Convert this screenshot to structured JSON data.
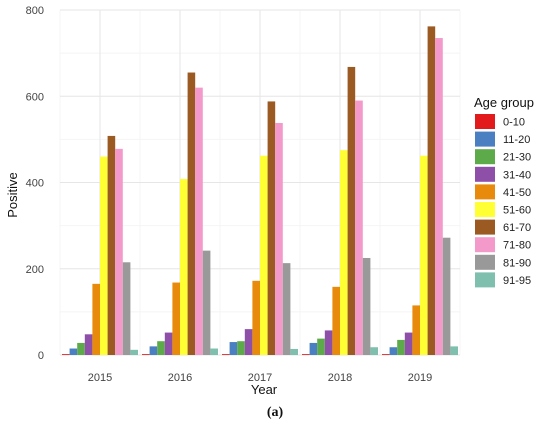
{
  "caption": "(a)",
  "chart_data": {
    "type": "bar",
    "title": "",
    "xlabel": "Year",
    "ylabel": "Positive",
    "categories": [
      "2015",
      "2016",
      "2017",
      "2018",
      "2019"
    ],
    "ylim": [
      0,
      800
    ],
    "yticks": [
      0,
      200,
      400,
      600,
      800
    ],
    "grid": true,
    "legend_title": "Age group",
    "legend_position": "right",
    "series": [
      {
        "name": "0-10",
        "color": "#e31a1c",
        "values": [
          2,
          2,
          2,
          2,
          2
        ]
      },
      {
        "name": "11-20",
        "color": "#4a7fc1",
        "values": [
          15,
          20,
          30,
          28,
          18
        ]
      },
      {
        "name": "21-30",
        "color": "#5daa4a",
        "values": [
          28,
          32,
          32,
          38,
          35
        ]
      },
      {
        "name": "31-40",
        "color": "#8e4fa8",
        "values": [
          48,
          52,
          60,
          57,
          52
        ]
      },
      {
        "name": "41-50",
        "color": "#e88a0c",
        "values": [
          165,
          168,
          172,
          158,
          115
        ]
      },
      {
        "name": "51-60",
        "color": "#ffff33",
        "values": [
          460,
          408,
          462,
          475,
          462
        ]
      },
      {
        "name": "61-70",
        "color": "#9b5a22",
        "values": [
          508,
          655,
          588,
          668,
          762
        ]
      },
      {
        "name": "71-80",
        "color": "#f39acb",
        "values": [
          478,
          620,
          538,
          590,
          735
        ]
      },
      {
        "name": "81-90",
        "color": "#999999",
        "values": [
          215,
          242,
          213,
          225,
          272
        ]
      },
      {
        "name": "91-95",
        "color": "#7fbfad",
        "values": [
          12,
          15,
          14,
          18,
          20
        ]
      }
    ]
  }
}
